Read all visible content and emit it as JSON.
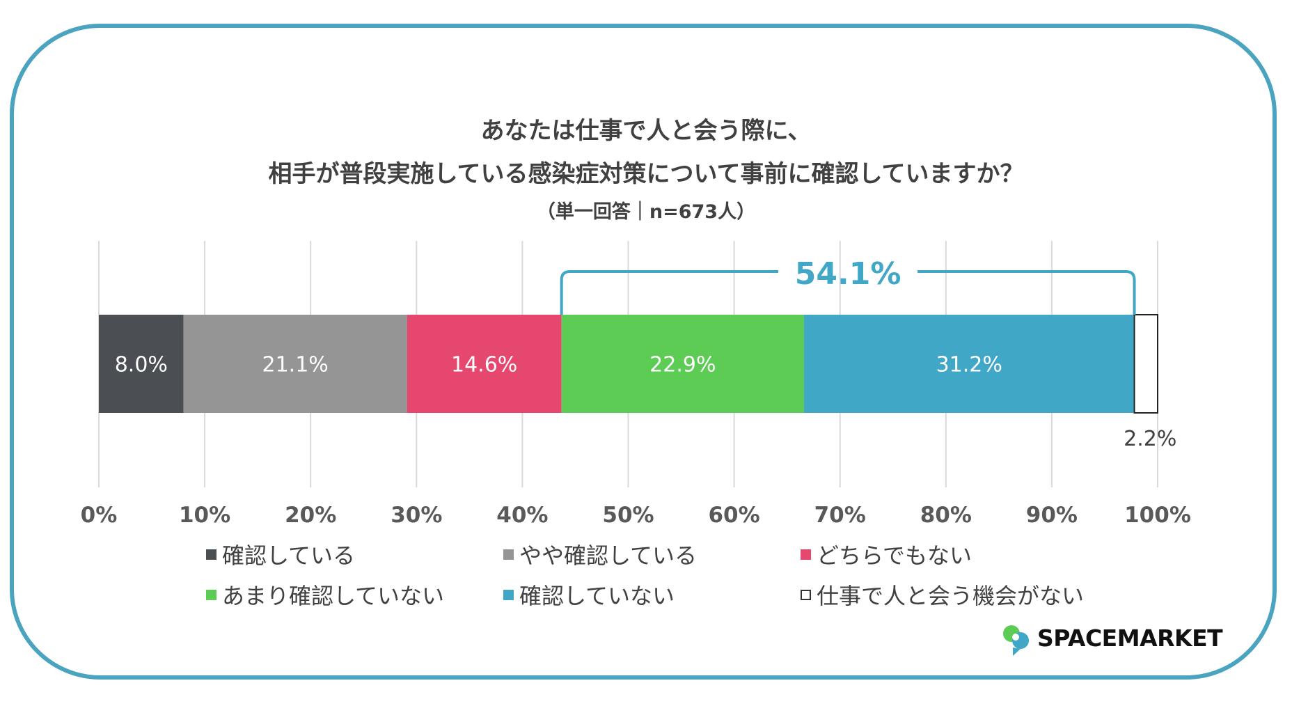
{
  "chart_data": {
    "type": "bar",
    "orientation": "horizontal-stacked",
    "title": "あなたは仕事で人と会う際に、",
    "title_line2": "相手が普段実施している感染症対策について事前に確認していますか？",
    "subtitle": "（単一回答｜n=673人）",
    "x_ticks": [
      "0%",
      "10%",
      "20%",
      "30%",
      "40%",
      "50%",
      "60%",
      "70%",
      "80%",
      "90%",
      "100%"
    ],
    "xlim": [
      0,
      100
    ],
    "grid": true,
    "legend_position": "bottom",
    "series": [
      {
        "name": "確認している",
        "value": 8.0,
        "label": "8.0%",
        "color": "#4b4f54"
      },
      {
        "name": "やや確認している",
        "value": 21.1,
        "label": "21.1%",
        "color": "#959595"
      },
      {
        "name": "どちらでもない",
        "value": 14.6,
        "label": "14.6%",
        "color": "#e5476e"
      },
      {
        "name": "あまり確認していない",
        "value": 22.9,
        "label": "22.9%",
        "color": "#5ccc54"
      },
      {
        "name": "確認していない",
        "value": 31.2,
        "label": "31.2%",
        "color": "#40a8c6"
      },
      {
        "name": "仕事で人と会う機会がない",
        "value": 2.2,
        "label": "2.2%",
        "color": "#ffffff"
      }
    ],
    "annotation": {
      "text": "54.1%",
      "color": "#40a8c6",
      "from_series": 3,
      "to_series": 4
    }
  },
  "brand": {
    "name": "SPACEMARKET",
    "colors": [
      "#5ccc54",
      "#40a8c6"
    ]
  },
  "frame_color": "#4aa3bf"
}
